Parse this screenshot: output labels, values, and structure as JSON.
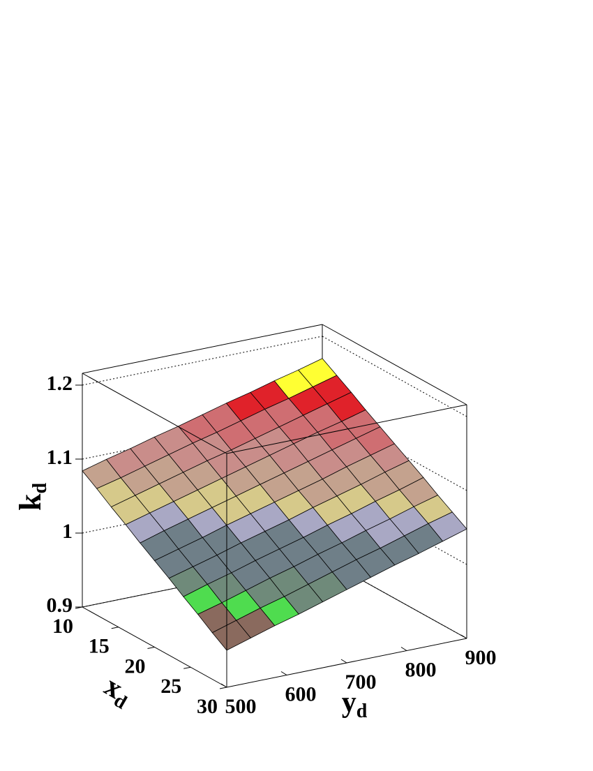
{
  "chart_data": {
    "type": "surface",
    "xlabel": "x",
    "xlabel_sub": "d",
    "ylabel": "y",
    "ylabel_sub": "d",
    "zlabel": "k",
    "zlabel_sub": "d",
    "xlim": [
      10,
      30
    ],
    "ylim": [
      500,
      900
    ],
    "zlim": [
      0.9,
      1.216
    ],
    "xticks": [
      10,
      15,
      20,
      25,
      30
    ],
    "yticks": [
      500,
      600,
      700,
      800,
      900
    ],
    "zticks": [
      0.9,
      1,
      1.1,
      1.2
    ],
    "grid": true,
    "x": [
      10,
      12,
      14,
      16,
      18,
      20,
      22,
      24,
      26,
      28,
      30
    ],
    "y": [
      500,
      540,
      580,
      620,
      660,
      700,
      740,
      780,
      820,
      860,
      900
    ],
    "z": [
      [
        1.084,
        1.093,
        1.101,
        1.11,
        1.118,
        1.127,
        1.136,
        1.144,
        1.153,
        1.161,
        1.17
      ],
      [
        1.071,
        1.079,
        1.088,
        1.097,
        1.106,
        1.114,
        1.123,
        1.132,
        1.14,
        1.149,
        1.158
      ],
      [
        1.057,
        1.066,
        1.075,
        1.084,
        1.093,
        1.101,
        1.11,
        1.119,
        1.128,
        1.137,
        1.146
      ],
      [
        1.044,
        1.053,
        1.062,
        1.071,
        1.08,
        1.089,
        1.098,
        1.107,
        1.116,
        1.124,
        1.133
      ],
      [
        1.03,
        1.04,
        1.049,
        1.058,
        1.067,
        1.076,
        1.085,
        1.094,
        1.103,
        1.112,
        1.121
      ],
      [
        1.017,
        1.026,
        1.035,
        1.045,
        1.054,
        1.063,
        1.072,
        1.081,
        1.091,
        1.1,
        1.109
      ],
      [
        1.004,
        1.013,
        1.022,
        1.032,
        1.041,
        1.05,
        1.06,
        1.069,
        1.078,
        1.088,
        1.097
      ],
      [
        0.99,
        1,
        1.009,
        1.019,
        1.028,
        1.037,
        1.047,
        1.056,
        1.066,
        1.075,
        1.085
      ],
      [
        0.977,
        0.986,
        0.996,
        1.006,
        1.015,
        1.025,
        1.034,
        1.044,
        1.053,
        1.063,
        1.072
      ],
      [
        0.963,
        0.973,
        0.983,
        0.992,
        1.002,
        1.012,
        1.022,
        1.031,
        1.041,
        1.051,
        1.06
      ],
      [
        0.95,
        0.96,
        0.97,
        0.979,
        0.989,
        0.999,
        1.009,
        1.019,
        1.028,
        1.038,
        1.048
      ]
    ],
    "contour_levels": [
      0.9,
      0.958,
      0.975,
      0.99,
      1.005,
      1.04,
      1.055,
      1.07,
      1.09,
      1.11,
      1.13,
      1.15,
      1.165
    ],
    "palette": [
      "#c9bca6",
      "#8a6a5e",
      "#4fdc4f",
      "#6f8a7a",
      "#6f7f88",
      "#a9a8c4",
      "#d6c98a",
      "#c4a28e",
      "#c98d8a",
      "#cf6e72",
      "#e0222a",
      "#ffff33",
      "#ffff00"
    ]
  }
}
